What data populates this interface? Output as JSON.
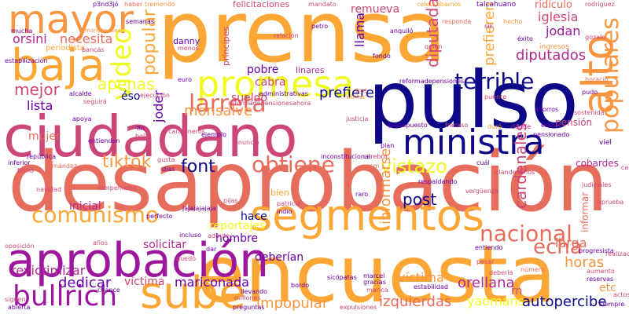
{
  "palette": {
    "background": "#ffffff",
    "colors": [
      "#fca636",
      "#e66c5c",
      "#cc4778",
      "#9c179e",
      "#6a00a8",
      "#0d0887",
      "#f0f921",
      "#f89540",
      "#b12a90",
      "#7e03a8"
    ]
  },
  "words": {
    "prensa": "prensa",
    "pulso": "pulso",
    "ciudadano": "ciudadano",
    "desaprobacion": "desaprobación",
    "encuesta": "encuesta",
    "aprobacion": "aprobación",
    "segmentos": "segmentos",
    "promesa": "promesa",
    "ministra": "ministra",
    "baja": "baja",
    "mayor": "mayor",
    "alto": "alto",
    "sube": "sube",
    "bullrich": "bullrich",
    "larreta": "larreta",
    "video": "video",
    "terrible": "terrible",
    "comunismo": "comunismo",
    "nacional": "nacional",
    "populares": "populares",
    "tiktok": "tiktok",
    "obtiene": "obtiene",
    "vistazo": "vistazo",
    "font": "font",
    "apenas": "apenas",
    "mejor": "mejor",
    "popular": "popular",
    "monsalve": "monsalve",
    "diputadas": "diputadas",
    "diputados": "diputados",
    "cardenales": "cardenales",
    "post": "post",
    "echa": "echa",
    "informarse": "informarse",
    "iglesia": "iglesia",
    "jodan": "jodan",
    "orellana": "orellana",
    "victima_a": "víctima",
    "victima_b": "victima",
    "revictimizar": "revictimizar",
    "dedicar": "dedicar",
    "mariconada": "mariconada",
    "impopular": "impopular",
    "izquierdas": "izquierdas",
    "yaomans": "yaomans",
    "autopercibe": "autopercibe",
    "horas": "horas",
    "larga": "larga",
    "necesita": "necesita",
    "orsini": "orsini",
    "remueva": "remueva",
    "llama": "llama",
    "prefiere": "prefiere",
    "prefieren": "prefieren",
    "pobre": "pobre",
    "cabra": "cabra",
    "sueldo": "sueldo",
    "joder": "joder",
    "lista": "lista",
    "eso": "éso",
    "mujer": "mujer",
    "inicial": "inicial",
    "hace": "hace",
    "hombre": "hombre",
    "solicitar": "solicitar",
    "reportajes": "reportajes",
    "deberian": "deberían",
    "bien": "bien",
    "pension": "pensión",
    "cobardes": "cobardes",
    "informar": "informar",
    "etc": "etc",
    "rn": "rn",
    "danny": "danny",
    "principes": "príncipes",
    "linares": "linares",
    "periodista": "periodista",
    "felicitaciones": "felicitaciones",
    "ridiculo": "ridículo",
    "ingresos": "ingresos",
    "mandato": "mandato",
    "talcahuano": "talcahuano",
    "celebrabamos": "celebrábamos",
    "rodriguez": "rodriguez",
    "haber": "haber",
    "tremendo": "tremendo",
    "mucha": "mucha",
    "relacion": "relación",
    "petro": "petro",
    "responda": "responda",
    "hecho": "hecho",
    "exito": "éxito",
    "gozalo": "gozalo",
    "quien": "quién",
    "fondo": "fondo",
    "tres": "tres",
    "administrativas": "administrativas",
    "winter": "winter",
    "presupuesto": "presupuesto",
    "fracaso": "fracaso",
    "duro": "duró",
    "donde": "dónde",
    "espero": "espero",
    "sostenida": "sostenida",
    "viel": "viel",
    "ejecucion": "ejecución",
    "alcalde": "alcalde",
    "seguira": "seguirá",
    "entienden": "entienden",
    "fin": "fin",
    "bola": "bola",
    "carabineros": "carabineros",
    "ejemplo": "ejemplo",
    "cerebro": "cerebro",
    "csm": "csm",
    "plan": "plan",
    "cual": "cuál",
    "clandestinos": "clandestinos",
    "republica": "república",
    "inferior": "inferior",
    "fernandez": "fernández",
    "firmo": "firmó",
    "gusta": "gusta",
    "dias": "días",
    "rompehielos": "rompehielos",
    "navidad": "navidad",
    "perfecto": "perfecto",
    "patricia": "patricia",
    "indio": "indio",
    "raro": "raro",
    "respaldando": "respaldando",
    "verguenza": "vergüenza",
    "realizados": "realizados",
    "progresista": "progresista",
    "judiciales": "judiciales",
    "pijas": "pijas",
    "incluso": "incluso",
    "admite": "admite",
    "pesar": "pesar",
    "entiendo": "entiendo",
    "numero": "número",
    "aumento": "aumento",
    "reservas": "reservas",
    "actos": "actos",
    "siempre": "siempre",
    "marcel": "marcel",
    "deberia": "debería",
    "gracias": "gracias",
    "marica": "marica",
    "estabilidad": "estabilidad",
    "bordo": "bordo",
    "expulsiones": "expulsiones",
    "preguntas": "preguntas",
    "millones": "millones",
    "llevando": "llevando",
    "sicopatas": "sicópatas",
    "oposicion": "oposición",
    "siguen": "siguen",
    "abierta": "abierta",
    "chance": "chance",
    "quedo": "quedó",
    "dar": "dar",
    "anos": "años",
    "semanas": "semanas",
    "menos": "menos",
    "euro": "euro",
    "bancas": "bancás",
    "estabilizacion": "estabilización",
    "horacio": "horacio",
    "pudo": "pudo",
    "puente": "puente",
    "jajajaja": "jajajajajaja",
    "anuncio": "anunció",
    "si": "si",
    "apoya": "apoya",
    "siii": "siii",
    "ahorros": "ahorros",
    "caracter": "carácter",
    "p3": "p3nd3jó",
    "maricon": "maricon idean",
    "reformadepensiones": "reformadepensiones",
    "reforma2": "reformadepensionesahora",
    "inconstitucional": "inconstitucional",
    "justicia": "justicia",
    "anquilo": "anquiló",
    "aprueba": "aprueba",
    "pensionado": "pensionado"
  }
}
